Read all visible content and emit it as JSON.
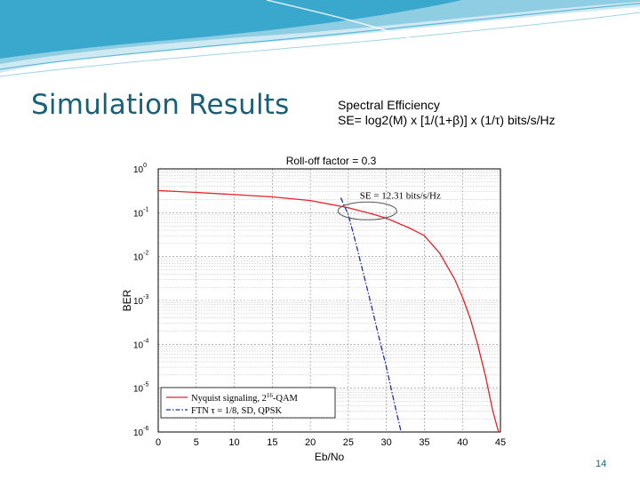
{
  "slide": {
    "title": "Simulation Results",
    "number": "14",
    "accent_color": "#17607a"
  },
  "spectral_box": {
    "line1": "Spectral Efficiency",
    "line2": "SE= log2(M) x [1/(1+β)] x (1/τ)  bits/s/Hz"
  },
  "chart_data": {
    "type": "line",
    "title": "Roll-off factor = 0.3",
    "xlabel": "Eb/No",
    "ylabel": "BER",
    "xlim": [
      0,
      45
    ],
    "ylim_log10": [
      -6,
      0
    ],
    "y_scale": "log",
    "grid": true,
    "x_ticks": [
      "0",
      "5",
      "10",
      "15",
      "20",
      "25",
      "30",
      "35",
      "40",
      "45"
    ],
    "y_ticks": [
      {
        "base": "10",
        "exp": "0"
      },
      {
        "base": "10",
        "exp": "-1"
      },
      {
        "base": "10",
        "exp": "-2"
      },
      {
        "base": "10",
        "exp": "-3"
      },
      {
        "base": "10",
        "exp": "-4"
      },
      {
        "base": "10",
        "exp": "-5"
      },
      {
        "base": "10",
        "exp": "-6"
      }
    ],
    "legend_position": "bottom-left",
    "annotation": "SE = 12.31 bits/s/Hz",
    "series": [
      {
        "name": "Nyquist signaling, 2¹⁶-QAM",
        "legend_label": "Nyquist signaling, 2",
        "legend_sup": "16",
        "legend_tail": "-QAM",
        "color": "#e8202a",
        "style": "solid",
        "x": [
          0,
          5,
          10,
          15,
          20,
          25,
          28,
          30,
          33,
          35,
          37,
          39,
          40,
          41,
          42,
          43,
          44,
          45
        ],
        "y": [
          0.32,
          0.29,
          0.26,
          0.23,
          0.19,
          0.13,
          0.095,
          0.075,
          0.045,
          0.03,
          0.012,
          0.003,
          0.0012,
          0.0004,
          0.0001,
          2e-05,
          3e-06,
          7e-07
        ]
      },
      {
        "name": "FTN τ = 1/8, SD, QPSK",
        "legend_label": "FTN τ = 1/8, SD, QPSK",
        "color": "#1f2fa8",
        "style": "dashdot",
        "x": [
          24,
          25,
          26,
          27,
          28,
          29,
          30,
          31,
          32
        ],
        "y": [
          0.22,
          0.09,
          0.02,
          0.004,
          0.0008,
          0.00015,
          3e-05,
          5e-06,
          9e-07
        ]
      }
    ]
  }
}
